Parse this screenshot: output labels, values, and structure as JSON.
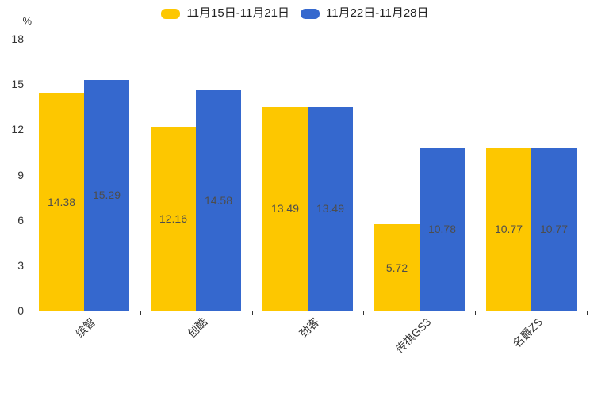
{
  "chart_data": {
    "type": "bar",
    "title": "",
    "xlabel": "",
    "ylabel": "%",
    "unit_label": "%",
    "categories": [
      "缤智",
      "创酷",
      "劲客",
      "传祺GS3",
      "名爵ZS"
    ],
    "series": [
      {
        "name": "11月15日-11月21日",
        "color": "#FDC700",
        "values": [
          14.38,
          12.16,
          13.49,
          5.72,
          10.77
        ]
      },
      {
        "name": "11月22日-11月28日",
        "color": "#3568CE",
        "values": [
          15.29,
          14.58,
          13.49,
          10.78,
          10.77
        ]
      }
    ],
    "ylim": [
      0,
      18
    ],
    "yticks": [
      0,
      3,
      6,
      9,
      12,
      15,
      18
    ],
    "grid": false,
    "legend_position": "top",
    "value_labels": true,
    "value_label_position": "inside-center",
    "x_label_rotation_deg": 45
  },
  "colors": {
    "background": "#ffffff",
    "axis": "#333333",
    "tick_label": "#333333",
    "value_label": "#4d4d4d",
    "legend_text": "#222222"
  }
}
